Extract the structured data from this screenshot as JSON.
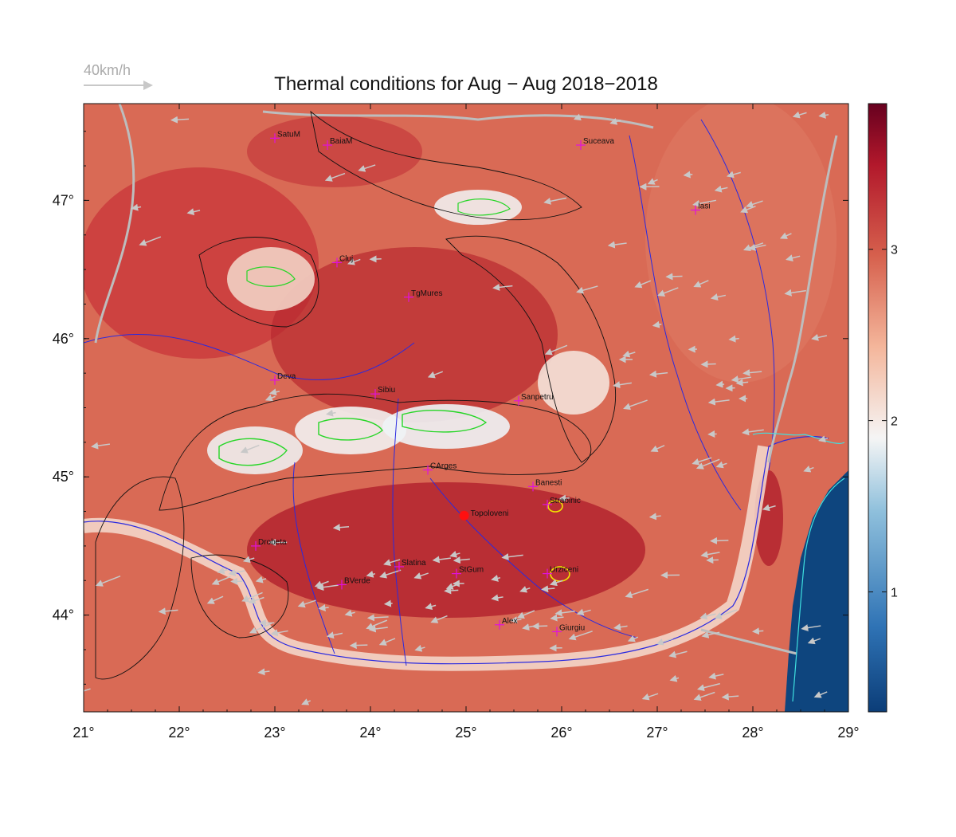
{
  "title": "Thermal conditions for Aug − Aug  2018−2018",
  "wind_reference": {
    "label": "40km/h",
    "speed_kmh": 40
  },
  "map": {
    "lon_range": [
      21,
      29
    ],
    "lat_range": [
      43.3,
      47.7
    ],
    "lon_ticks": [
      {
        "value": 21,
        "label": "21°"
      },
      {
        "value": 22,
        "label": "22°"
      },
      {
        "value": 23,
        "label": "23°"
      },
      {
        "value": 24,
        "label": "24°"
      },
      {
        "value": 25,
        "label": "25°"
      },
      {
        "value": 26,
        "label": "26°"
      },
      {
        "value": 27,
        "label": "27°"
      },
      {
        "value": 28,
        "label": "28°"
      },
      {
        "value": 29,
        "label": "29°"
      }
    ],
    "lat_ticks": [
      {
        "value": 44,
        "label": "44°"
      },
      {
        "value": 45,
        "label": "45°"
      },
      {
        "value": 46,
        "label": "46°"
      },
      {
        "value": 47,
        "label": "47°"
      }
    ],
    "cities": [
      {
        "name": "SatuM",
        "lon": 23.0,
        "lat": 47.45
      },
      {
        "name": "BaiaM",
        "lon": 23.55,
        "lat": 47.4
      },
      {
        "name": "Suceava",
        "lon": 26.2,
        "lat": 47.4
      },
      {
        "name": "Iasi",
        "lon": 27.4,
        "lat": 46.93
      },
      {
        "name": "Cluj",
        "lon": 23.65,
        "lat": 46.55
      },
      {
        "name": "TgMures",
        "lon": 24.4,
        "lat": 46.3
      },
      {
        "name": "Deva",
        "lon": 23.0,
        "lat": 45.7
      },
      {
        "name": "Sibiu",
        "lon": 24.05,
        "lat": 45.6
      },
      {
        "name": "Sanpetru",
        "lon": 25.55,
        "lat": 45.55
      },
      {
        "name": "CArges",
        "lon": 24.6,
        "lat": 45.05
      },
      {
        "name": "Banesti",
        "lon": 25.7,
        "lat": 44.93
      },
      {
        "name": "Straoinic",
        "lon": 25.85,
        "lat": 44.8
      },
      {
        "name": "Drobeta",
        "lon": 22.8,
        "lat": 44.5
      },
      {
        "name": "Slatina",
        "lon": 24.3,
        "lat": 44.35
      },
      {
        "name": "StGum",
        "lon": 24.9,
        "lat": 44.3
      },
      {
        "name": "Urziceni",
        "lon": 25.85,
        "lat": 44.3
      },
      {
        "name": "BVerde",
        "lon": 23.7,
        "lat": 44.22
      },
      {
        "name": "Alex",
        "lon": 25.35,
        "lat": 43.93
      },
      {
        "name": "Giurgiu",
        "lon": 25.95,
        "lat": 43.88
      }
    ],
    "highlight": {
      "name": "Topoloveni",
      "lon": 24.98,
      "lat": 44.72
    }
  },
  "colorbar": {
    "range": [
      0.3,
      3.85
    ],
    "ticks": [
      {
        "value": 1,
        "label": "1"
      },
      {
        "value": 2,
        "label": "2"
      },
      {
        "value": 3,
        "label": "3"
      }
    ],
    "colors": [
      "#0b3d78",
      "#2f73b5",
      "#8fc0dc",
      "#f5f5f5",
      "#f4b69b",
      "#d6604d",
      "#b2182b",
      "#67001f"
    ]
  }
}
